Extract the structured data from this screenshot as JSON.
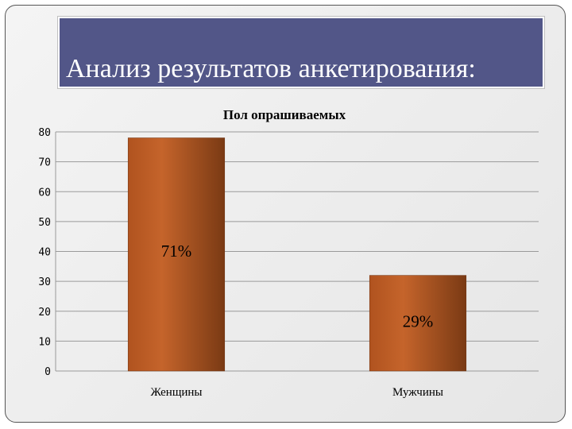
{
  "slide": {
    "title": "Анализ результатов анкетирования:"
  },
  "colors": {
    "title_band": "#525688",
    "bar_dark": "#7a3a14",
    "bar_mid": "#c5642b",
    "bar_light": "#b0531f",
    "gridline": "#9a9a9a"
  },
  "chart_data": {
    "type": "bar",
    "title": "Пол опрашиваемых",
    "xlabel": "",
    "ylabel": "",
    "categories": [
      "Женщины",
      "Мужчины"
    ],
    "values": [
      78,
      32
    ],
    "data_labels": [
      "71%",
      "29%"
    ],
    "ylim": [
      0,
      80
    ],
    "yticks": [
      0,
      10,
      20,
      30,
      40,
      50,
      60,
      70,
      80
    ],
    "grid": true,
    "legend": "none"
  }
}
